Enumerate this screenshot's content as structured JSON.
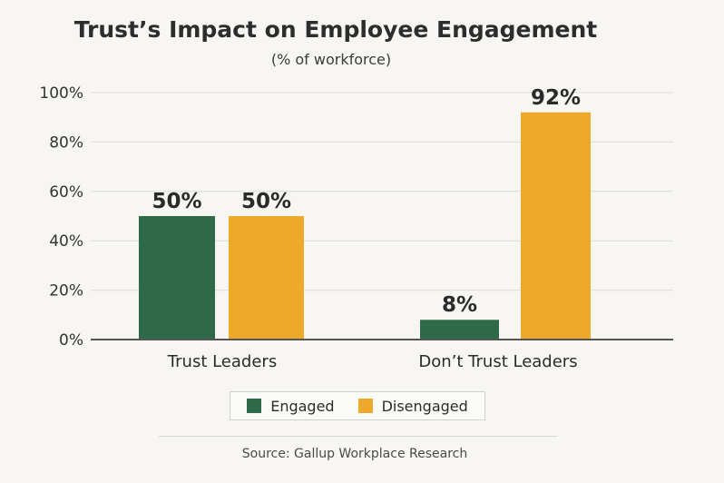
{
  "chart_data": {
    "type": "bar",
    "title": "Trust’s Impact on Employee Engagement",
    "subtitle": "(% of workforce)",
    "categories": [
      "Trust Leaders",
      "Don’t Trust Leaders"
    ],
    "series": [
      {
        "name": "Engaged",
        "values": [
          50,
          8
        ],
        "labels": [
          "50%",
          "8%"
        ],
        "color": "#2f6a48"
      },
      {
        "name": "Disengaged",
        "values": [
          50,
          92
        ],
        "labels": [
          "50%",
          "92%"
        ],
        "color": "#eea92a"
      }
    ],
    "ylim": [
      0,
      100
    ],
    "yticks": [
      0,
      20,
      40,
      60,
      80,
      100
    ],
    "ytick_labels": [
      "0%",
      "20%",
      "40%",
      "60%",
      "80%",
      "100%"
    ],
    "grid": true,
    "legend_position": "bottom"
  },
  "legend": {
    "engaged_label": "Engaged",
    "disengaged_label": "Disengaged"
  },
  "footer": {
    "source": "Source: Gallup Workplace Research"
  }
}
